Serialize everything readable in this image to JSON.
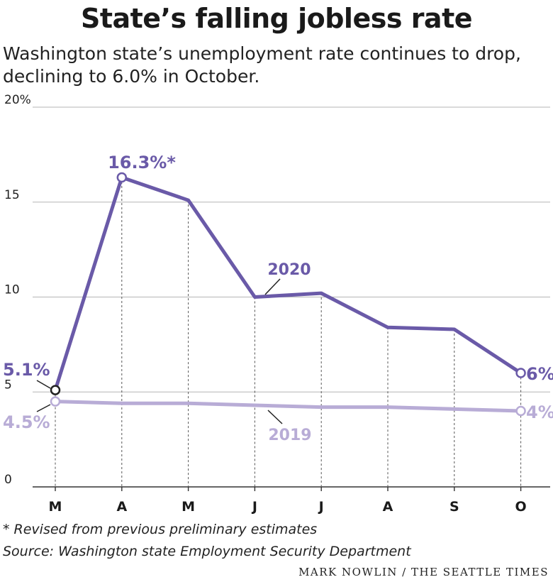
{
  "header": {
    "title": "State’s falling jobless rate",
    "subtitle": "Washington state’s unemployment rate continues to drop, declining to 6.0% in October."
  },
  "chart_data": {
    "type": "line",
    "title": "State’s falling jobless rate",
    "subtitle": "Washington state’s unemployment rate continues to drop, declining to 6.0% in October.",
    "categories": [
      "M",
      "A",
      "M",
      "J",
      "J",
      "A",
      "S",
      "O"
    ],
    "ylim": [
      0,
      20
    ],
    "yticks": [
      0,
      5,
      10,
      15,
      20
    ],
    "ytick_labels": [
      "0",
      "5",
      "10",
      "15",
      "20%"
    ],
    "grid": true,
    "series": [
      {
        "name": "2020",
        "color": "#6a5aa8",
        "values": [
          5.1,
          16.3,
          15.1,
          10.0,
          10.2,
          8.4,
          8.3,
          6.0
        ]
      },
      {
        "name": "2019",
        "color": "#b8acd6",
        "values": [
          4.5,
          4.4,
          4.4,
          4.3,
          4.2,
          4.2,
          4.1,
          4.0
        ]
      }
    ],
    "annotations": {
      "s2020_start": "5.1%",
      "s2020_peak": "16.3%*",
      "s2020_end": "6%",
      "s2019_start": "4.5%",
      "s2019_end": "4%"
    }
  },
  "footer": {
    "note": "* Revised from previous preliminary estimates",
    "source": "Source: Washington state Employment Security Department",
    "credit": "MARK NOWLIN / THE SEATTLE TIMES"
  },
  "colors": {
    "series_2020": "#6a5aa8",
    "series_2019": "#b8acd6",
    "grid": "#b5b5b5",
    "text": "#1a1a1a"
  }
}
